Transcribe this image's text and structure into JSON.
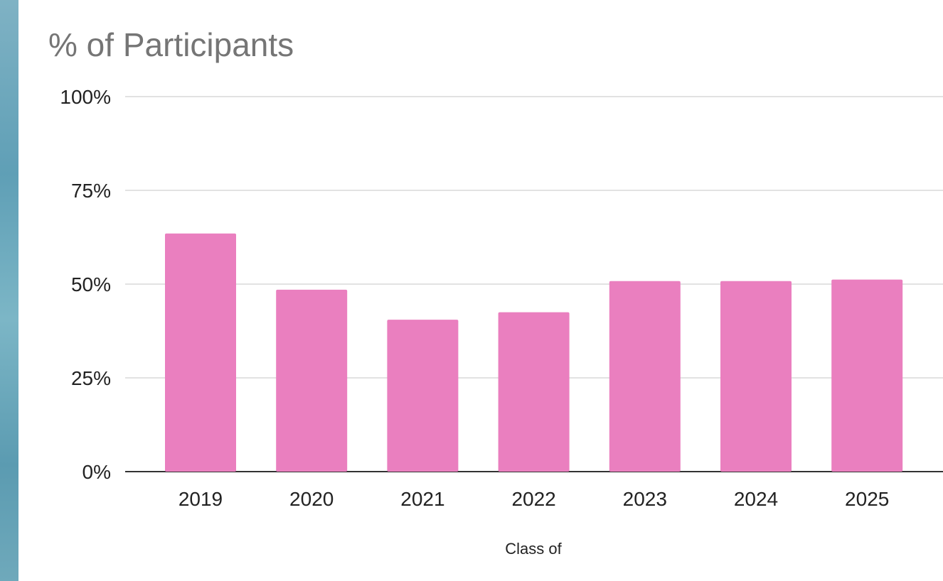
{
  "chart_data": {
    "type": "bar",
    "title": "% of Participants",
    "xlabel": "Class of",
    "ylabel": "",
    "categories": [
      "2019",
      "2020",
      "2021",
      "2022",
      "2023",
      "2024",
      "2025"
    ],
    "values": [
      63.5,
      48.5,
      40.5,
      42.5,
      50.8,
      50.8,
      51.2
    ],
    "ylim": [
      0,
      100
    ],
    "yticks": [
      {
        "value": 0,
        "label": "0%"
      },
      {
        "value": 25,
        "label": "25%"
      },
      {
        "value": 50,
        "label": "50%"
      },
      {
        "value": 75,
        "label": "75%"
      },
      {
        "value": 100,
        "label": "100%"
      }
    ],
    "grid": true,
    "legend": "none",
    "bar_color": "#ea7fbf",
    "grid_color": "#d9d9d9",
    "axis_color": "#333333"
  }
}
